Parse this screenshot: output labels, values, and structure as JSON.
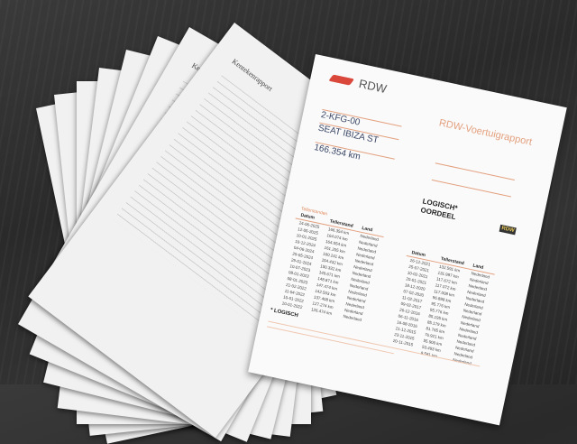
{
  "scene": {
    "background": "dark wood table",
    "accent_color": "#d9483b"
  },
  "back_sheets": [
    {
      "heading": "Kentekenrapport"
    },
    {
      "heading": "Kentekenrapport"
    },
    {
      "heading": "Kentekenrapport"
    },
    {
      "heading": "Kentekenrapport"
    },
    {
      "heading": "Kentekenrapport"
    },
    {
      "heading": "Kentekenrapport"
    },
    {
      "heading": "Kentekenrapport"
    },
    {
      "heading": "Kentekenrapport"
    }
  ],
  "report": {
    "brand": "RDW",
    "title": "RDW-Voertuigrapport",
    "plate": "2-KFG-00",
    "model": "SEAT IBIZA ST",
    "odometer": "166.354 km",
    "verdict_line1": "LOGISCH*",
    "verdict_line2": "OORDEEL",
    "rdw_check": "RDW",
    "table_title": "Tellerstanden",
    "headers": [
      "Datum",
      "Tellerstand",
      "Land"
    ],
    "rows_left": [
      [
        "24-06-2025",
        "166.354 km",
        "Nederland"
      ],
      [
        "12-05-2025",
        "164.074 km",
        "Nederland"
      ],
      [
        "10-01-2025",
        "164.054 km",
        "Nederland"
      ],
      [
        "10-12-2024",
        "161.205 km",
        "Nederland"
      ],
      [
        "04-06-2024",
        "160.241 km",
        "Nederland"
      ],
      [
        "29-05-2024",
        "154.432 km",
        "Nederland"
      ],
      [
        "29-01-2024",
        "150.332 km",
        "Nederland"
      ],
      [
        "10-07-2023",
        "149.671 km",
        "Nederland"
      ],
      [
        "08-01-2023",
        "148.871 km",
        "Nederland"
      ],
      [
        "08-01-2023",
        "147.474 km",
        "Nederland"
      ],
      [
        "21-02-2022",
        "142.503 km",
        "Nederland"
      ],
      [
        "11-04-2022",
        "137.408 km",
        "Nederland"
      ],
      [
        "10-01-2022",
        "127.274 km",
        "Nederland"
      ],
      [
        "10-01-2022",
        "126.474 km",
        "Nederland"
      ]
    ],
    "rows_right": [
      [
        "26-12-2021",
        "132.591 km",
        "Nederland"
      ],
      [
        "25-07-2021",
        "131.987 km",
        "Nederland"
      ],
      [
        "10-02-2021",
        "117.672 km",
        "Nederland"
      ],
      [
        "20-01-2021",
        "117.072 km",
        "Nederland"
      ],
      [
        "18-12-2020",
        "117.008 km",
        "Nederland"
      ],
      [
        "07-02-2020",
        "96.888 km",
        "Nederland"
      ],
      [
        "11-02-2017",
        "95.776 km",
        "Nederland"
      ],
      [
        "09-02-2017",
        "95.776 km",
        "Nederland"
      ],
      [
        "26-12-2016",
        "85.195 km",
        "Nederland"
      ],
      [
        "06-11-2016",
        "85.179 km",
        "Nederland"
      ],
      [
        "16-08-2016",
        "81.765 km",
        "Nederland"
      ],
      [
        "21-12-2015",
        "76.921 km",
        "Nederland"
      ],
      [
        "23-11-2015",
        "55.900 km",
        "Nederland"
      ],
      [
        "20-11-2015",
        "53.493 km",
        "Nederland"
      ],
      [
        "",
        "8.581 km",
        "Nederland"
      ]
    ],
    "footer_label": "* LOGISCH"
  }
}
